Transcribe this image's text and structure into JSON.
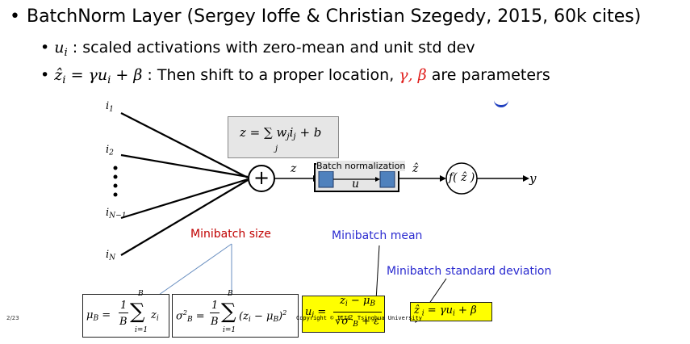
{
  "bullets": {
    "main": "BatchNorm Layer (Sergey Ioffe & Christian Szegedy, 2015, 60k cites)",
    "sub1_symbol": "u",
    "sub1_subscript": "i",
    "sub1_text": " : scaled activations with zero-mean and unit std dev",
    "sub2_lhs": "ẑ",
    "sub2_lhs_sub": "i",
    "sub2_eq": " = γu",
    "sub2_eq_sub": "i",
    "sub2_eq_end": " + β",
    "sub2_text": " : Then shift to a proper location, ",
    "sub2_params": "γ, β",
    "sub2_text_end": " are parameters"
  },
  "diagram": {
    "inputs": [
      "i₁",
      "i₂",
      "i_{N−1}",
      "i_N"
    ],
    "input_labels": {
      "i1": "i",
      "i1_sub": "1",
      "i2": "i",
      "i2_sub": "2",
      "iN1": "i",
      "iN1_sub": "N−1",
      "iN": "i",
      "iN_sub": "N"
    },
    "sum_symbol": "+",
    "z_formula": "z = ∑ w",
    "z_formula_sub": "j",
    "z_formula_rest": "i",
    "z_formula_rest_sub": "j",
    "z_formula_end": " + b",
    "z_formula_index": "j",
    "z_label": "z",
    "bn_title": "Batch normalization",
    "u_label": "u",
    "zhat_label": "ẑ",
    "activation": "f( ẑ )",
    "output": "y"
  },
  "annotations": {
    "minibatch_size": "Minibatch size",
    "minibatch_mean": "Minibatch mean",
    "minibatch_std": "Minibatch standard deviation"
  },
  "equations": {
    "mu_lhs": "μ",
    "mu_lhs_sub": "B",
    "mu_frac": "1",
    "mu_den": "B",
    "mu_top": "B",
    "mu_bottom": "i=1",
    "mu_term": "z",
    "mu_term_sub": "i",
    "sigma_lhs": "σ",
    "sigma_lhs_sup": "2",
    "sigma_lhs_sub": "B",
    "sigma_frac": "1",
    "sigma_den": "B",
    "sigma_top": "B",
    "sigma_bottom": "i=1",
    "sigma_term": "(z",
    "sigma_term_sub": "i",
    "sigma_term_mid": " − μ",
    "sigma_term_sub2": "B",
    "sigma_term_end": ")",
    "sigma_term_sup": "2",
    "u_lhs": "u",
    "u_lhs_sub": "i",
    "u_num": "z",
    "u_num_sub": "i",
    "u_num_end": " − μ",
    "u_num_sub2": "B",
    "u_den": "√σ",
    "u_den_sup": "2",
    "u_den_sub": "B",
    "u_den_end": " + ε",
    "zhat_eq": "ẑ",
    "zhat_eq_sub": " i",
    "zhat_eq_rest": " = γu",
    "zhat_eq_rest_sub": "i",
    "zhat_eq_end": " + β"
  },
  "footer": {
    "page": "2/23",
    "copyright": "Copyright © IIIS, Tsinghua University"
  },
  "colors": {
    "red": "#e0201e",
    "blue_label": "#2b2bd0",
    "node_blue": "#4f81bd",
    "highlight": "#ffff00"
  }
}
